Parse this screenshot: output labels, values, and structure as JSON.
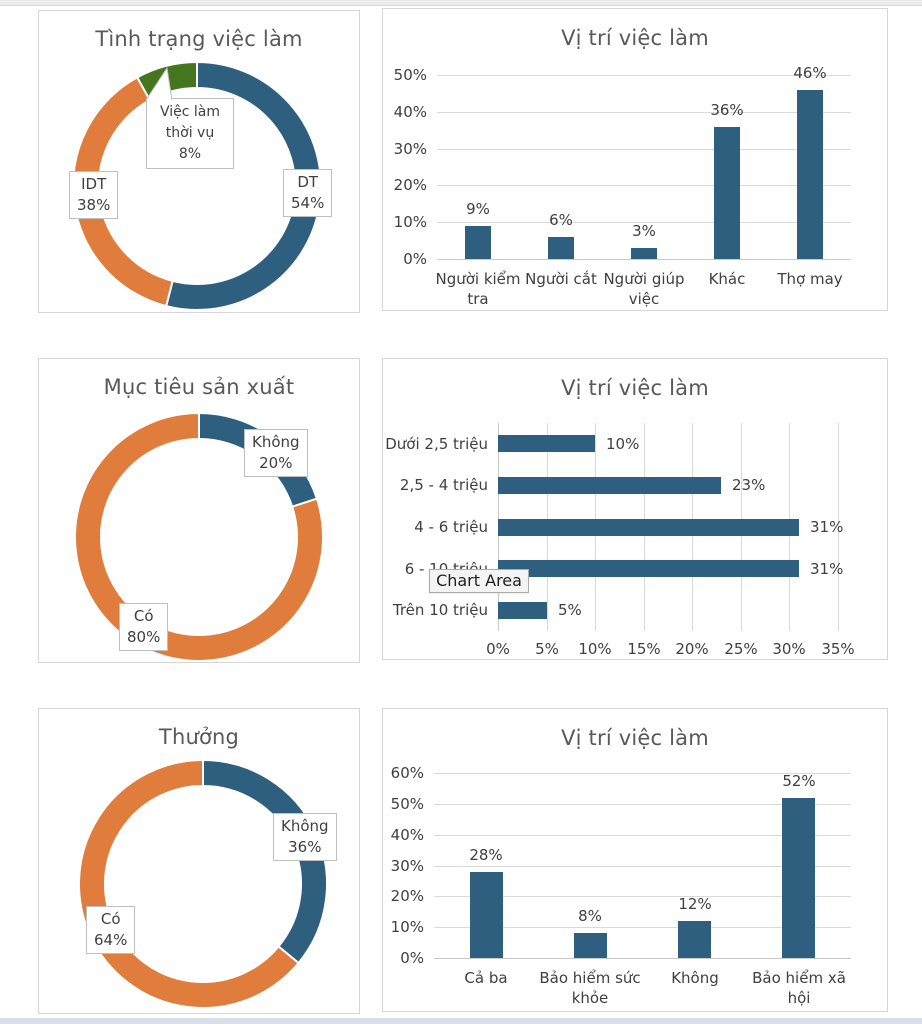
{
  "colors": {
    "blue": "#2E5F7F",
    "orange": "#E07C3C",
    "green": "#45751F",
    "title_text": "#595959",
    "axis_text": "#404040",
    "gridline": "#D9D9D9",
    "panel_border": "#D6D6D6",
    "label_box_border": "#BFBFBF"
  },
  "chart_data": [
    {
      "type": "donut",
      "title": "Tình trạng việc làm",
      "slices": [
        {
          "label": "DT",
          "value": 54,
          "color_key": "blue"
        },
        {
          "label": "IDT",
          "value": 38,
          "color_key": "orange"
        },
        {
          "label": "Việc làm thời vụ",
          "value": 8,
          "color_key": "green"
        }
      ],
      "labels": {
        "callout": {
          "lines": [
            "Việc làm",
            "thời vụ",
            "8%"
          ]
        },
        "idt": {
          "lines": [
            "IDT",
            "38%"
          ]
        },
        "dt": {
          "lines": [
            "DT",
            "54%"
          ]
        }
      }
    },
    {
      "type": "bar",
      "title": "Vị trí việc làm",
      "categories": [
        "Người kiểm tra",
        "Người cắt",
        "Người giúp việc",
        "Khác",
        "Thợ may"
      ],
      "values": [
        9,
        6,
        3,
        36,
        46
      ],
      "data_labels": [
        "9%",
        "6%",
        "3%",
        "36%",
        "46%"
      ],
      "ylim": [
        0,
        50
      ],
      "ytick_step": 10,
      "ytick_labels": [
        "0%",
        "10%",
        "20%",
        "30%",
        "40%",
        "50%"
      ],
      "grid": true,
      "series_color_key": "blue"
    },
    {
      "type": "donut",
      "title": "Mục tiêu sản xuất",
      "slices": [
        {
          "label": "Không",
          "value": 20,
          "color_key": "blue"
        },
        {
          "label": "Có",
          "value": 80,
          "color_key": "orange"
        }
      ],
      "labels": {
        "khong": {
          "lines": [
            "Không",
            "20%"
          ]
        },
        "co": {
          "lines": [
            "Có",
            "80%"
          ]
        }
      }
    },
    {
      "type": "hbar",
      "title": "Vị trí việc làm",
      "categories": [
        "Dưới 2,5 triệu",
        "2,5 - 4 triệu",
        "4 - 6 triệu",
        "6 - 10 triệu",
        "Trên 10 triệu"
      ],
      "values": [
        10,
        23,
        31,
        31,
        5
      ],
      "data_labels": [
        "10%",
        "23%",
        "31%",
        "31%",
        "5%"
      ],
      "xlim": [
        0,
        35
      ],
      "xtick_step": 5,
      "xtick_labels": [
        "0%",
        "5%",
        "10%",
        "15%",
        "20%",
        "25%",
        "30%",
        "35%"
      ],
      "grid": true,
      "series_color_key": "blue",
      "overlay_label": "Chart Area"
    },
    {
      "type": "donut",
      "title": "Thưởng",
      "slices": [
        {
          "label": "Không",
          "value": 36,
          "color_key": "blue"
        },
        {
          "label": "Có",
          "value": 64,
          "color_key": "orange"
        }
      ],
      "labels": {
        "khong": {
          "lines": [
            "Không",
            "36%"
          ]
        },
        "co": {
          "lines": [
            "Có",
            "64%"
          ]
        }
      }
    },
    {
      "type": "bar",
      "title": "Vị trí việc làm",
      "categories": [
        "Cả ba",
        "Bảo hiểm sức khỏe",
        "Không",
        "Bảo hiểm xã hội"
      ],
      "values": [
        28,
        8,
        12,
        52
      ],
      "data_labels": [
        "28%",
        "8%",
        "12%",
        "52%"
      ],
      "ylim": [
        0,
        60
      ],
      "ytick_step": 10,
      "ytick_labels": [
        "0%",
        "10%",
        "20%",
        "30%",
        "40%",
        "50%",
        "60%"
      ],
      "grid": true,
      "series_color_key": "blue"
    }
  ]
}
